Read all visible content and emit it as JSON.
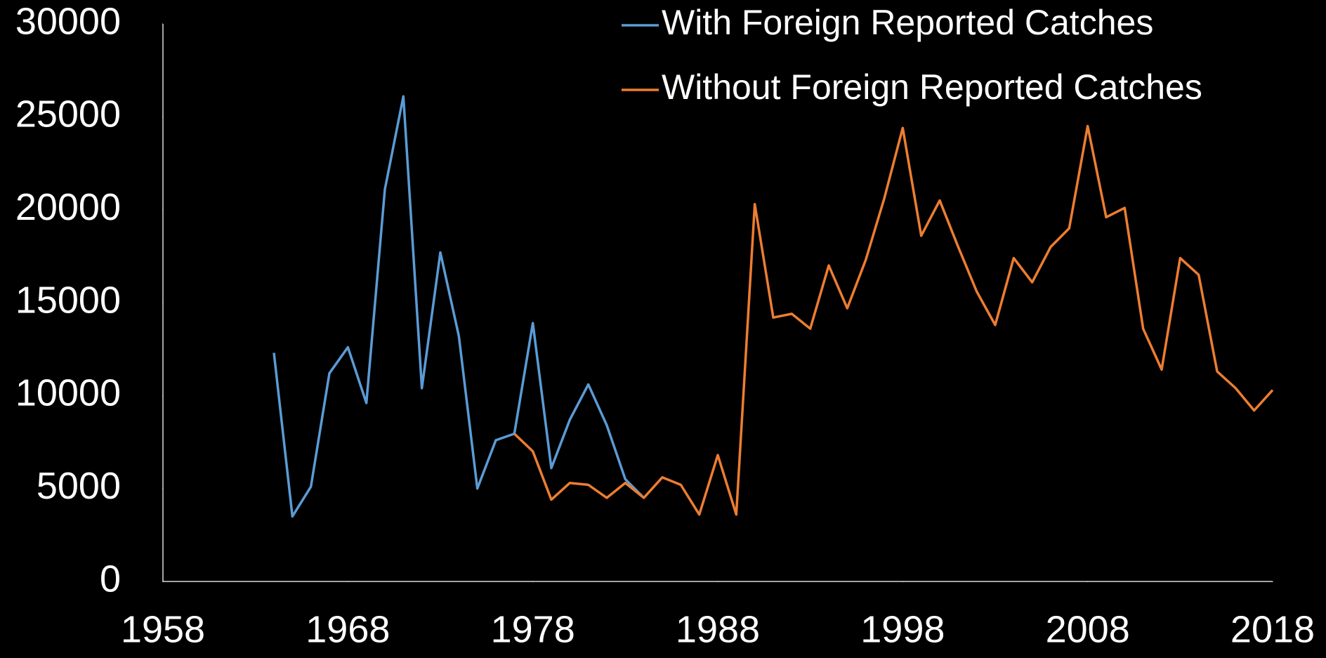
{
  "chart_data": {
    "type": "line",
    "x": [
      1964,
      1965,
      1966,
      1967,
      1968,
      1969,
      1970,
      1971,
      1972,
      1973,
      1974,
      1975,
      1976,
      1977,
      1978,
      1979,
      1980,
      1981,
      1982,
      1983,
      1984,
      1985,
      1986,
      1987,
      1988,
      1989,
      1990,
      1991,
      1992,
      1993,
      1994,
      1995,
      1996,
      1997,
      1998,
      1999,
      2000,
      2001,
      2002,
      2003,
      2004,
      2005,
      2006,
      2007,
      2008,
      2009,
      2010,
      2011,
      2012,
      2013,
      2014,
      2015,
      2016,
      2017,
      2018
    ],
    "series": [
      {
        "name": "With Foreign Reported Catches",
        "color": "#5b9bd5",
        "values": [
          12300,
          3500,
          5100,
          11200,
          12600,
          9600,
          21100,
          26100,
          10400,
          17700,
          13200,
          5000,
          7600,
          7950,
          13900,
          6100,
          8700,
          10600,
          8400,
          5500,
          4500,
          null,
          null,
          null,
          null,
          null,
          null,
          null,
          null,
          null,
          null,
          null,
          null,
          null,
          null,
          null,
          null,
          null,
          null,
          null,
          null,
          null,
          null,
          null,
          null,
          null,
          null,
          null,
          null,
          null,
          null,
          null,
          null,
          null,
          null
        ]
      },
      {
        "name": "Without Foreign Reported Catches",
        "color": "#ed7d31",
        "values": [
          null,
          null,
          null,
          null,
          null,
          null,
          null,
          null,
          null,
          null,
          null,
          null,
          null,
          7950,
          7000,
          4400,
          5300,
          5200,
          4500,
          5300,
          4500,
          5600,
          5200,
          3600,
          6800,
          3600,
          20300,
          14200,
          14400,
          13600,
          17000,
          14700,
          17300,
          20600,
          24400,
          18600,
          20500,
          18000,
          15600,
          13800,
          17400,
          16100,
          18000,
          19000,
          24500,
          19600,
          20100,
          13600,
          11400,
          17400,
          16500,
          11300,
          10400,
          9200,
          10300
        ]
      }
    ],
    "xlim": [
      1958,
      2018
    ],
    "xticks": [
      1958,
      1968,
      1978,
      1988,
      1998,
      2008,
      2018
    ],
    "ylim": [
      0,
      30000
    ],
    "yticks": [
      0,
      5000,
      10000,
      15000,
      20000,
      25000,
      30000
    ],
    "grid": false,
    "legend": "top-right"
  }
}
